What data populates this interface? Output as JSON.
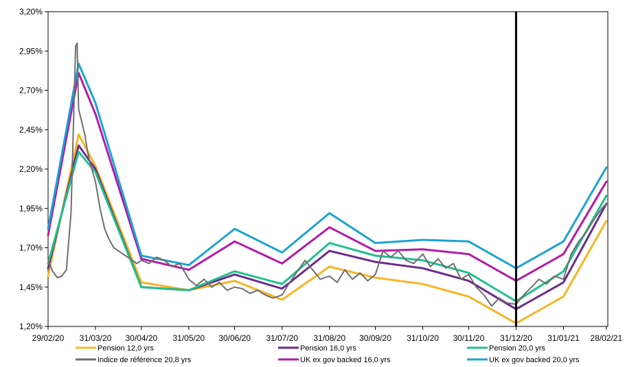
{
  "chart_data": {
    "type": "line",
    "title": "",
    "xlabel": "",
    "ylabel": "",
    "ylim": [
      1.2,
      3.2
    ],
    "y_ticks": [
      1.2,
      1.45,
      1.7,
      1.95,
      2.2,
      2.45,
      2.7,
      2.95,
      3.2
    ],
    "y_tick_labels": [
      "1,20%",
      "1,45%",
      "1,70%",
      "1,95%",
      "2,20%",
      "2,45%",
      "2,70%",
      "2,95%",
      "3,20%"
    ],
    "x_ticks": [
      "2020-02-29",
      "2020-03-31",
      "2020-04-30",
      "2020-05-31",
      "2020-06-30",
      "2020-07-31",
      "2020-08-31",
      "2020-09-30",
      "2020-10-31",
      "2020-11-30",
      "2020-12-31",
      "2021-01-31",
      "2021-02-28"
    ],
    "x_tick_labels": [
      "29/02/20",
      "31/03/20",
      "30/04/20",
      "31/05/20",
      "30/06/20",
      "31/07/20",
      "31/08/20",
      "30/09/20",
      "31/10/20",
      "30/11/20",
      "31/12/20",
      "31/01/21",
      "28/02/21"
    ],
    "xlim": [
      "2020-02-29",
      "2021-03-01"
    ],
    "vertical_marker": "2020-12-31",
    "grid": "none",
    "legend_position": "bottom",
    "series": [
      {
        "name": "Pension 12,0 yrs",
        "color": "#F9B423",
        "x": [
          "2020-02-29",
          "2020-03-20",
          "2020-03-31",
          "2020-04-30",
          "2020-05-31",
          "2020-06-30",
          "2020-07-31",
          "2020-08-31",
          "2020-09-30",
          "2020-10-31",
          "2020-11-30",
          "2020-12-31",
          "2021-01-31",
          "2021-02-28"
        ],
        "y": [
          1.52,
          2.42,
          2.22,
          1.48,
          1.43,
          1.49,
          1.37,
          1.58,
          1.51,
          1.47,
          1.39,
          1.22,
          1.39,
          1.87
        ]
      },
      {
        "name": "Pension 16,0 yrs",
        "color": "#6B2A8C",
        "x": [
          "2020-02-29",
          "2020-03-20",
          "2020-03-31",
          "2020-04-30",
          "2020-05-31",
          "2020-06-30",
          "2020-07-31",
          "2020-08-31",
          "2020-09-30",
          "2020-10-31",
          "2020-11-30",
          "2020-12-31",
          "2021-01-31",
          "2021-02-28"
        ],
        "y": [
          1.57,
          2.35,
          2.2,
          1.45,
          1.43,
          1.53,
          1.44,
          1.68,
          1.61,
          1.57,
          1.49,
          1.31,
          1.48,
          1.98
        ]
      },
      {
        "name": "Pension 20,0 yrs",
        "color": "#1FBF8F",
        "x": [
          "2020-02-29",
          "2020-03-20",
          "2020-03-31",
          "2020-04-30",
          "2020-05-31",
          "2020-06-30",
          "2020-07-31",
          "2020-08-31",
          "2020-09-30",
          "2020-10-31",
          "2020-11-30",
          "2020-12-31",
          "2021-01-31",
          "2021-02-28"
        ],
        "y": [
          1.6,
          2.31,
          2.18,
          1.45,
          1.43,
          1.55,
          1.47,
          1.73,
          1.65,
          1.62,
          1.54,
          1.36,
          1.55,
          2.03
        ]
      },
      {
        "name": "Indice de référence 20,8 yrs",
        "color": "#6E6E6E",
        "x": [
          "2020-02-29",
          "2020-03-03",
          "2020-03-06",
          "2020-03-09",
          "2020-03-12",
          "2020-03-15",
          "2020-03-18",
          "2020-03-19",
          "2020-03-20",
          "2020-03-22",
          "2020-03-24",
          "2020-03-26",
          "2020-03-28",
          "2020-03-31",
          "2020-04-03",
          "2020-04-06",
          "2020-04-09",
          "2020-04-12",
          "2020-04-15",
          "2020-04-18",
          "2020-04-21",
          "2020-04-24",
          "2020-04-27",
          "2020-04-30",
          "2020-05-05",
          "2020-05-10",
          "2020-05-15",
          "2020-05-20",
          "2020-05-25",
          "2020-05-28",
          "2020-05-31",
          "2020-06-05",
          "2020-06-10",
          "2020-06-15",
          "2020-06-20",
          "2020-06-25",
          "2020-06-30",
          "2020-07-05",
          "2020-07-10",
          "2020-07-15",
          "2020-07-20",
          "2020-07-25",
          "2020-07-31",
          "2020-08-05",
          "2020-08-10",
          "2020-08-15",
          "2020-08-20",
          "2020-08-25",
          "2020-08-31",
          "2020-09-05",
          "2020-09-10",
          "2020-09-15",
          "2020-09-20",
          "2020-09-25",
          "2020-09-30",
          "2020-10-05",
          "2020-10-10",
          "2020-10-15",
          "2020-10-20",
          "2020-10-25",
          "2020-10-31",
          "2020-11-05",
          "2020-11-10",
          "2020-11-15",
          "2020-11-20",
          "2020-11-25",
          "2020-11-30",
          "2020-12-05",
          "2020-12-10",
          "2020-12-15",
          "2020-12-20",
          "2020-12-25",
          "2020-12-31",
          "2021-01-05",
          "2021-01-10",
          "2021-01-15",
          "2021-01-20",
          "2021-01-25",
          "2021-01-31",
          "2021-02-05",
          "2021-02-10",
          "2021-02-15",
          "2021-02-20",
          "2021-02-25",
          "2021-02-28"
        ],
        "y": [
          1.62,
          1.55,
          1.51,
          1.52,
          1.56,
          1.92,
          2.98,
          3.0,
          2.58,
          2.5,
          2.42,
          2.3,
          2.22,
          2.12,
          1.95,
          1.82,
          1.75,
          1.7,
          1.68,
          1.66,
          1.64,
          1.62,
          1.6,
          1.62,
          1.6,
          1.64,
          1.62,
          1.58,
          1.6,
          1.55,
          1.5,
          1.46,
          1.5,
          1.45,
          1.48,
          1.43,
          1.45,
          1.44,
          1.41,
          1.43,
          1.4,
          1.38,
          1.4,
          1.48,
          1.55,
          1.62,
          1.56,
          1.5,
          1.52,
          1.48,
          1.56,
          1.5,
          1.54,
          1.49,
          1.53,
          1.68,
          1.64,
          1.68,
          1.62,
          1.6,
          1.66,
          1.58,
          1.63,
          1.57,
          1.6,
          1.5,
          1.53,
          1.45,
          1.4,
          1.33,
          1.38,
          1.35,
          1.34,
          1.4,
          1.45,
          1.5,
          1.47,
          1.52,
          1.5,
          1.66,
          1.74,
          1.8,
          1.88,
          1.95,
          1.98
        ]
      },
      {
        "name": "UK ex gov backed 16,0 yrs",
        "color": "#B21AA8",
        "x": [
          "2020-02-29",
          "2020-03-20",
          "2020-03-31",
          "2020-04-30",
          "2020-05-31",
          "2020-06-30",
          "2020-07-31",
          "2020-08-31",
          "2020-09-30",
          "2020-10-31",
          "2020-11-30",
          "2020-12-31",
          "2021-01-31",
          "2021-02-28"
        ],
        "y": [
          1.78,
          2.81,
          2.55,
          1.63,
          1.56,
          1.74,
          1.6,
          1.83,
          1.68,
          1.69,
          1.66,
          1.49,
          1.66,
          2.12
        ]
      },
      {
        "name": "UK ex gov backed 20,0 yrs",
        "color": "#1AA3D2",
        "x": [
          "2020-02-29",
          "2020-03-20",
          "2020-03-31",
          "2020-04-30",
          "2020-05-31",
          "2020-06-30",
          "2020-07-31",
          "2020-08-31",
          "2020-09-30",
          "2020-10-31",
          "2020-11-30",
          "2020-12-31",
          "2021-01-31",
          "2021-02-28"
        ],
        "y": [
          1.82,
          2.87,
          2.62,
          1.65,
          1.59,
          1.82,
          1.67,
          1.92,
          1.73,
          1.75,
          1.74,
          1.57,
          1.74,
          2.21
        ]
      }
    ]
  }
}
